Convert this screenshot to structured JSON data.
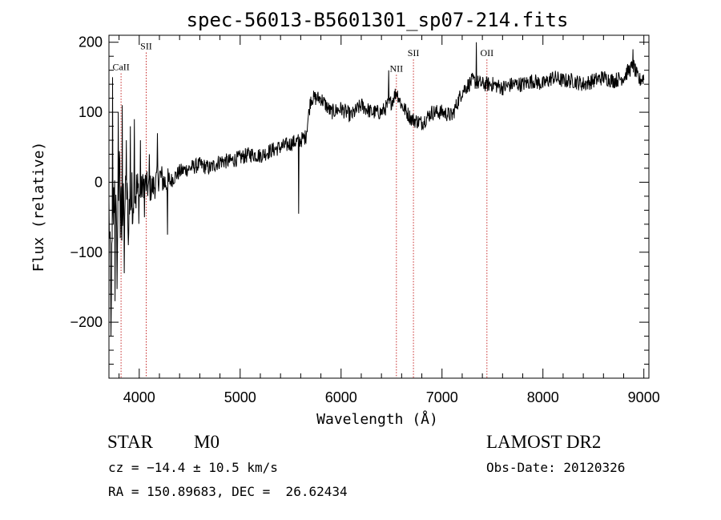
{
  "chart_data": {
    "type": "line",
    "title": "spec-56013-B5601301_sp07-214.fits",
    "xlabel": "Wavelength (Å)",
    "ylabel": "Flux (relative)",
    "xlim": [
      3700,
      9050
    ],
    "ylim": [
      -280,
      210
    ],
    "xticks": [
      4000,
      5000,
      6000,
      7000,
      8000,
      9000
    ],
    "yticks": [
      -200,
      -100,
      0,
      100,
      200
    ],
    "minor_x_step": 200,
    "minor_y_step": 20,
    "grid": false,
    "series": [
      {
        "color": "#000000",
        "noise_scale": 7,
        "points": [
          [
            3700,
            -40
          ],
          [
            3720,
            -160
          ],
          [
            3740,
            -60
          ],
          [
            3760,
            10
          ],
          [
            3780,
            -120
          ],
          [
            3800,
            20
          ],
          [
            3830,
            -60
          ],
          [
            3860,
            -20
          ],
          [
            3900,
            -40
          ],
          [
            3950,
            -10
          ],
          [
            4000,
            -20
          ],
          [
            4050,
            0
          ],
          [
            4100,
            -10
          ],
          [
            4150,
            -5
          ],
          [
            4200,
            10
          ],
          [
            4250,
            0
          ],
          [
            4300,
            0
          ],
          [
            4400,
            15
          ],
          [
            4500,
            20
          ],
          [
            4600,
            25
          ],
          [
            4700,
            20
          ],
          [
            4800,
            30
          ],
          [
            4900,
            30
          ],
          [
            5000,
            35
          ],
          [
            5100,
            40
          ],
          [
            5200,
            38
          ],
          [
            5300,
            45
          ],
          [
            5400,
            50
          ],
          [
            5500,
            55
          ],
          [
            5550,
            58
          ],
          [
            5600,
            60
          ],
          [
            5650,
            65
          ],
          [
            5700,
            120
          ],
          [
            5800,
            120
          ],
          [
            5900,
            100
          ],
          [
            6000,
            105
          ],
          [
            6100,
            95
          ],
          [
            6200,
            110
          ],
          [
            6300,
            100
          ],
          [
            6400,
            100
          ],
          [
            6500,
            115
          ],
          [
            6550,
            130
          ],
          [
            6600,
            110
          ],
          [
            6700,
            90
          ],
          [
            6800,
            85
          ],
          [
            6900,
            100
          ],
          [
            7000,
            100
          ],
          [
            7100,
            95
          ],
          [
            7200,
            130
          ],
          [
            7300,
            145
          ],
          [
            7400,
            140
          ],
          [
            7500,
            140
          ],
          [
            7600,
            135
          ],
          [
            7700,
            140
          ],
          [
            7800,
            140
          ],
          [
            7900,
            145
          ],
          [
            8000,
            140
          ],
          [
            8100,
            150
          ],
          [
            8200,
            145
          ],
          [
            8300,
            145
          ],
          [
            8400,
            140
          ],
          [
            8500,
            145
          ],
          [
            8600,
            150
          ],
          [
            8700,
            145
          ],
          [
            8800,
            150
          ],
          [
            8850,
            160
          ],
          [
            8900,
            165
          ],
          [
            8950,
            145
          ],
          [
            9000,
            150
          ]
        ],
        "spikes": [
          [
            3720,
            -220
          ],
          [
            3735,
            150
          ],
          [
            3760,
            -170
          ],
          [
            3790,
            100
          ],
          [
            3810,
            -80
          ],
          [
            3830,
            110
          ],
          [
            3850,
            -130
          ],
          [
            3870,
            60
          ],
          [
            3890,
            -90
          ],
          [
            3910,
            80
          ],
          [
            3930,
            -60
          ],
          [
            3950,
            90
          ],
          [
            4010,
            60
          ],
          [
            4050,
            -50
          ],
          [
            4100,
            40
          ],
          [
            4180,
            70
          ],
          [
            4280,
            -75
          ],
          [
            5580,
            -45
          ],
          [
            6470,
            160
          ],
          [
            7340,
            200
          ],
          [
            8400,
            150
          ],
          [
            8620,
            150
          ],
          [
            8890,
            190
          ]
        ]
      }
    ],
    "lines": [
      {
        "label": "CaII",
        "x": 3820,
        "label_flux": 160
      },
      {
        "label": "SII",
        "x": 4069,
        "label_flux": 190
      },
      {
        "label": "NII",
        "x": 6548,
        "label_flux": 158
      },
      {
        "label": "SII",
        "x": 6717,
        "label_flux": 180
      },
      {
        "label": "OII",
        "x": 7445,
        "label_flux": 180
      }
    ],
    "line_color": "#c62828"
  },
  "info": {
    "object_class": "STAR",
    "subclass": "M0",
    "survey": "LAMOST DR2",
    "cz": "cz = −14.4 ± 10.5 km/s",
    "obs_date": "Obs-Date: 20120326",
    "coords": "RA = 150.89683, DEC =  26.62434"
  }
}
